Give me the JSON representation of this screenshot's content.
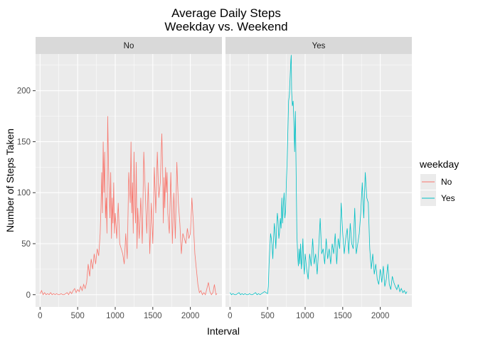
{
  "chart_data": {
    "type": "line",
    "title": "Average Daily Steps",
    "subtitle": "Weekday vs. Weekend",
    "xlabel": "Interval",
    "ylabel": "Number of Steps Taken",
    "xlim": [
      -60,
      2420
    ],
    "ylim": [
      -12,
      236
    ],
    "x_ticks": [
      0,
      500,
      1000,
      1500,
      2000
    ],
    "y_ticks": [
      0,
      50,
      100,
      150,
      200
    ],
    "grid": true,
    "legend": {
      "title": "weekday",
      "placement": "right",
      "entries": [
        "No",
        "Yes"
      ]
    },
    "facets": [
      {
        "label": "No",
        "series": "No",
        "color": "#F8766D",
        "points": [
          [
            0,
            1
          ],
          [
            20,
            4
          ],
          [
            40,
            0
          ],
          [
            60,
            2
          ],
          [
            80,
            0
          ],
          [
            100,
            1
          ],
          [
            120,
            0
          ],
          [
            140,
            2
          ],
          [
            160,
            0
          ],
          [
            180,
            1
          ],
          [
            200,
            0
          ],
          [
            220,
            1
          ],
          [
            240,
            0
          ],
          [
            260,
            0
          ],
          [
            280,
            1
          ],
          [
            300,
            0
          ],
          [
            320,
            0
          ],
          [
            340,
            1
          ],
          [
            360,
            2
          ],
          [
            380,
            0
          ],
          [
            400,
            3
          ],
          [
            420,
            1
          ],
          [
            440,
            4
          ],
          [
            460,
            6
          ],
          [
            480,
            2
          ],
          [
            500,
            5
          ],
          [
            520,
            3
          ],
          [
            540,
            8
          ],
          [
            560,
            4
          ],
          [
            580,
            10
          ],
          [
            600,
            6
          ],
          [
            620,
            12
          ],
          [
            640,
            30
          ],
          [
            660,
            18
          ],
          [
            680,
            35
          ],
          [
            700,
            25
          ],
          [
            720,
            40
          ],
          [
            740,
            30
          ],
          [
            760,
            45
          ],
          [
            780,
            38
          ],
          [
            800,
            60
          ],
          [
            810,
            85
          ],
          [
            820,
            120
          ],
          [
            830,
            80
          ],
          [
            840,
            150
          ],
          [
            850,
            100
          ],
          [
            860,
            140
          ],
          [
            870,
            75
          ],
          [
            880,
            95
          ],
          [
            890,
            60
          ],
          [
            900,
            175
          ],
          [
            910,
            130
          ],
          [
            920,
            100
          ],
          [
            930,
            75
          ],
          [
            940,
            120
          ],
          [
            950,
            55
          ],
          [
            960,
            95
          ],
          [
            970,
            70
          ],
          [
            980,
            110
          ],
          [
            990,
            60
          ],
          [
            1000,
            80
          ],
          [
            1020,
            55
          ],
          [
            1040,
            90
          ],
          [
            1060,
            50
          ],
          [
            1080,
            45
          ],
          [
            1100,
            40
          ],
          [
            1120,
            30
          ],
          [
            1140,
            60
          ],
          [
            1160,
            35
          ],
          [
            1180,
            120
          ],
          [
            1200,
            90
          ],
          [
            1210,
            150
          ],
          [
            1220,
            80
          ],
          [
            1230,
            110
          ],
          [
            1240,
            60
          ],
          [
            1250,
            140
          ],
          [
            1260,
            90
          ],
          [
            1270,
            70
          ],
          [
            1280,
            130
          ],
          [
            1290,
            45
          ],
          [
            1300,
            85
          ],
          [
            1320,
            55
          ],
          [
            1340,
            95
          ],
          [
            1360,
            50
          ],
          [
            1380,
            140
          ],
          [
            1400,
            100
          ],
          [
            1420,
            60
          ],
          [
            1440,
            110
          ],
          [
            1460,
            40
          ],
          [
            1480,
            90
          ],
          [
            1500,
            50
          ],
          [
            1520,
            125
          ],
          [
            1540,
            80
          ],
          [
            1560,
            140
          ],
          [
            1580,
            95
          ],
          [
            1600,
            110
          ],
          [
            1620,
            158
          ],
          [
            1630,
            130
          ],
          [
            1640,
            70
          ],
          [
            1650,
            115
          ],
          [
            1660,
            85
          ],
          [
            1670,
            125
          ],
          [
            1680,
            100
          ],
          [
            1690,
            120
          ],
          [
            1700,
            80
          ],
          [
            1720,
            60
          ],
          [
            1740,
            120
          ],
          [
            1760,
            50
          ],
          [
            1780,
            100
          ],
          [
            1800,
            55
          ],
          [
            1820,
            130
          ],
          [
            1840,
            90
          ],
          [
            1860,
            70
          ],
          [
            1880,
            40
          ],
          [
            1900,
            60
          ],
          [
            1920,
            55
          ],
          [
            1940,
            50
          ],
          [
            1960,
            65
          ],
          [
            1980,
            55
          ],
          [
            2000,
            60
          ],
          [
            2020,
            95
          ],
          [
            2040,
            70
          ],
          [
            2060,
            40
          ],
          [
            2080,
            25
          ],
          [
            2100,
            10
          ],
          [
            2120,
            2
          ],
          [
            2140,
            4
          ],
          [
            2160,
            0
          ],
          [
            2180,
            2
          ],
          [
            2200,
            0
          ],
          [
            2220,
            6
          ],
          [
            2240,
            12
          ],
          [
            2260,
            3
          ],
          [
            2280,
            0
          ],
          [
            2300,
            2
          ],
          [
            2320,
            10
          ],
          [
            2340,
            0
          ],
          [
            2355,
            1
          ]
        ]
      },
      {
        "label": "Yes",
        "series": "Yes",
        "color": "#00BFC4",
        "points": [
          [
            0,
            2
          ],
          [
            20,
            0
          ],
          [
            40,
            1
          ],
          [
            60,
            0
          ],
          [
            80,
            0
          ],
          [
            100,
            1
          ],
          [
            120,
            2
          ],
          [
            140,
            0
          ],
          [
            160,
            1
          ],
          [
            180,
            0
          ],
          [
            200,
            1
          ],
          [
            220,
            0
          ],
          [
            240,
            0
          ],
          [
            260,
            1
          ],
          [
            280,
            0
          ],
          [
            300,
            0
          ],
          [
            320,
            1
          ],
          [
            340,
            2
          ],
          [
            360,
            0
          ],
          [
            380,
            1
          ],
          [
            400,
            0
          ],
          [
            420,
            1
          ],
          [
            440,
            2
          ],
          [
            460,
            3
          ],
          [
            480,
            2
          ],
          [
            500,
            1
          ],
          [
            510,
            8
          ],
          [
            520,
            30
          ],
          [
            530,
            45
          ],
          [
            540,
            60
          ],
          [
            550,
            55
          ],
          [
            560,
            48
          ],
          [
            570,
            35
          ],
          [
            580,
            55
          ],
          [
            590,
            70
          ],
          [
            600,
            60
          ],
          [
            610,
            45
          ],
          [
            620,
            65
          ],
          [
            630,
            80
          ],
          [
            640,
            72
          ],
          [
            650,
            55
          ],
          [
            660,
            62
          ],
          [
            670,
            75
          ],
          [
            680,
            65
          ],
          [
            690,
            95
          ],
          [
            700,
            70
          ],
          [
            710,
            88
          ],
          [
            720,
            100
          ],
          [
            730,
            75
          ],
          [
            740,
            82
          ],
          [
            750,
            110
          ],
          [
            760,
            130
          ],
          [
            770,
            160
          ],
          [
            780,
            190
          ],
          [
            790,
            196
          ],
          [
            800,
            213
          ],
          [
            810,
            230
          ],
          [
            815,
            235
          ],
          [
            820,
            200
          ],
          [
            830,
            185
          ],
          [
            840,
            190
          ],
          [
            850,
            170
          ],
          [
            860,
            140
          ],
          [
            870,
            180
          ],
          [
            880,
            120
          ],
          [
            890,
            60
          ],
          [
            900,
            40
          ],
          [
            910,
            28
          ],
          [
            920,
            45
          ],
          [
            930,
            30
          ],
          [
            940,
            50
          ],
          [
            950,
            25
          ],
          [
            960,
            35
          ],
          [
            970,
            55
          ],
          [
            980,
            30
          ],
          [
            990,
            20
          ],
          [
            1000,
            40
          ],
          [
            1020,
            25
          ],
          [
            1040,
            15
          ],
          [
            1060,
            40
          ],
          [
            1080,
            28
          ],
          [
            1100,
            55
          ],
          [
            1120,
            30
          ],
          [
            1140,
            40
          ],
          [
            1160,
            20
          ],
          [
            1180,
            45
          ],
          [
            1200,
            75
          ],
          [
            1220,
            40
          ],
          [
            1240,
            45
          ],
          [
            1260,
            30
          ],
          [
            1280,
            55
          ],
          [
            1300,
            35
          ],
          [
            1320,
            45
          ],
          [
            1340,
            30
          ],
          [
            1360,
            50
          ],
          [
            1380,
            40
          ],
          [
            1400,
            60
          ],
          [
            1420,
            30
          ],
          [
            1440,
            55
          ],
          [
            1460,
            45
          ],
          [
            1480,
            90
          ],
          [
            1500,
            60
          ],
          [
            1520,
            40
          ],
          [
            1540,
            55
          ],
          [
            1560,
            65
          ],
          [
            1580,
            40
          ],
          [
            1600,
            70
          ],
          [
            1620,
            50
          ],
          [
            1640,
            45
          ],
          [
            1660,
            85
          ],
          [
            1680,
            40
          ],
          [
            1700,
            50
          ],
          [
            1720,
            60
          ],
          [
            1740,
            80
          ],
          [
            1760,
            110
          ],
          [
            1780,
            75
          ],
          [
            1800,
            120
          ],
          [
            1820,
            95
          ],
          [
            1840,
            90
          ],
          [
            1860,
            45
          ],
          [
            1880,
            25
          ],
          [
            1900,
            40
          ],
          [
            1920,
            20
          ],
          [
            1940,
            30
          ],
          [
            1960,
            15
          ],
          [
            1980,
            10
          ],
          [
            2000,
            25
          ],
          [
            2020,
            12
          ],
          [
            2040,
            28
          ],
          [
            2060,
            8
          ],
          [
            2080,
            15
          ],
          [
            2100,
            30
          ],
          [
            2120,
            10
          ],
          [
            2140,
            5
          ],
          [
            2160,
            18
          ],
          [
            2180,
            12
          ],
          [
            2200,
            8
          ],
          [
            2220,
            5
          ],
          [
            2240,
            10
          ],
          [
            2260,
            3
          ],
          [
            2280,
            6
          ],
          [
            2300,
            2
          ],
          [
            2320,
            4
          ],
          [
            2340,
            1
          ],
          [
            2355,
            3
          ]
        ]
      }
    ]
  }
}
